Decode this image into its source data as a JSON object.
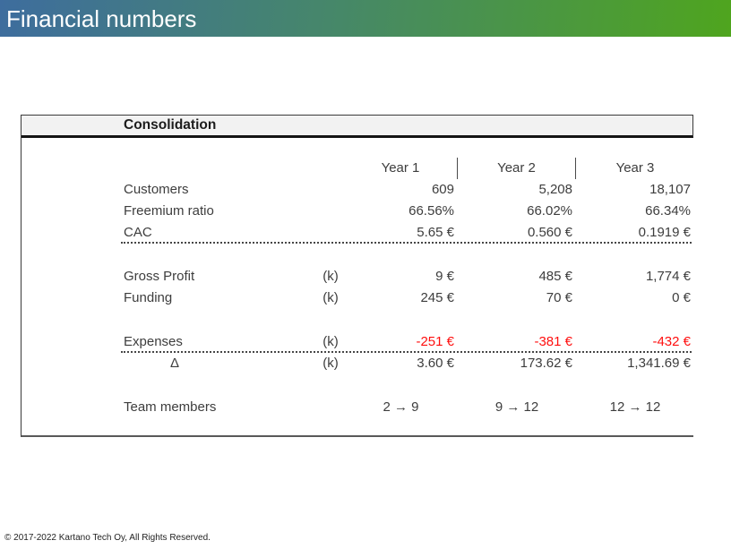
{
  "header": {
    "title": "Financial numbers"
  },
  "table": {
    "title": "Consolidation",
    "columns": [
      "Year 1",
      "Year 2",
      "Year 3"
    ],
    "rows": [
      {
        "label": "Customers",
        "unit": "",
        "values": [
          "609",
          "5,208",
          "18,107"
        ]
      },
      {
        "label": "Freemium ratio",
        "unit": "",
        "values": [
          "66.56%",
          "66.02%",
          "66.34%"
        ]
      },
      {
        "label": "CAC",
        "unit": "",
        "values": [
          "5.65 €",
          "0.560 €",
          "0.1919 €"
        ]
      },
      {
        "label": "Gross Profit",
        "unit": "(k)",
        "values": [
          "9 €",
          "485 €",
          "1,774 €"
        ]
      },
      {
        "label": "Funding",
        "unit": "(k)",
        "values": [
          "245 €",
          "70 €",
          "0 €"
        ]
      },
      {
        "label": "Expenses",
        "unit": "(k)",
        "values": [
          "-251 €",
          "-381 €",
          "-432 €"
        ]
      },
      {
        "label": "Δ",
        "unit": "(k)",
        "values": [
          "3.60 €",
          "173.62 €",
          "1,341.69 €"
        ]
      },
      {
        "label": "Team members",
        "unit": "",
        "values": [
          "2 → 9",
          "9 → 12",
          "12 → 12"
        ]
      }
    ]
  },
  "chart_data": {
    "type": "table",
    "title": "Consolidation",
    "categories": [
      "Year 1",
      "Year 2",
      "Year 3"
    ],
    "series": [
      {
        "name": "Customers",
        "values": [
          609,
          5208,
          18107
        ]
      },
      {
        "name": "Freemium ratio (%)",
        "values": [
          66.56,
          66.02,
          66.34
        ]
      },
      {
        "name": "CAC (€)",
        "values": [
          5.65,
          0.56,
          0.1919
        ]
      },
      {
        "name": "Gross Profit (k€)",
        "values": [
          9,
          485,
          1774
        ]
      },
      {
        "name": "Funding (k€)",
        "values": [
          245,
          70,
          0
        ]
      },
      {
        "name": "Expenses (k€)",
        "values": [
          -251,
          -381,
          -432
        ]
      },
      {
        "name": "Δ (k€)",
        "values": [
          3.6,
          173.62,
          1341.69
        ]
      },
      {
        "name": "Team members (start → end)",
        "values": [
          "2 → 9",
          "9 → 12",
          "12 → 12"
        ]
      }
    ]
  },
  "footer": {
    "copyright": "© 2017-2022 Kartano Tech Oy, All Rights Reserved."
  },
  "colors": {
    "bar_gradient_left": "#3e6d9e",
    "bar_gradient_right": "#4fa51e",
    "negative_value": "#ff0f0f",
    "table_text": "#3d3d3d",
    "header_strip_bg": "#f2f2f2"
  }
}
